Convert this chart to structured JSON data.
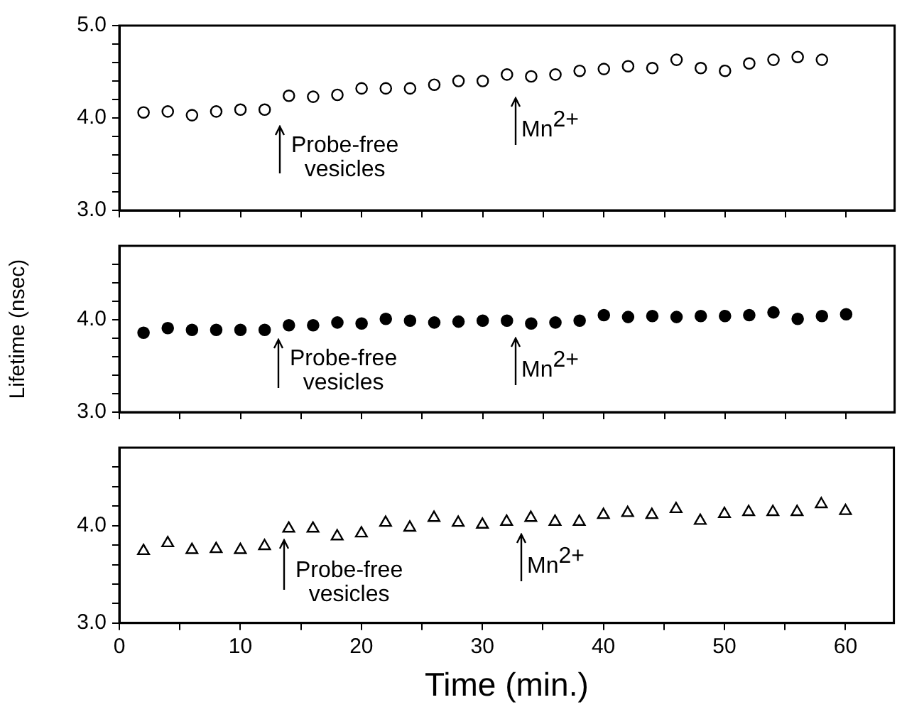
{
  "chart_data": [
    {
      "type": "scatter",
      "xlim": [
        0,
        64
      ],
      "xticks": [
        {
          "value": 0,
          "label": null
        },
        {
          "value": 5,
          "label": null
        },
        {
          "value": 10,
          "label": null
        },
        {
          "value": 15,
          "label": null
        },
        {
          "value": 20,
          "label": null
        },
        {
          "value": 25,
          "label": null
        },
        {
          "value": 30,
          "label": null
        },
        {
          "value": 35,
          "label": null
        },
        {
          "value": 40,
          "label": null
        },
        {
          "value": 45,
          "label": null
        },
        {
          "value": 50,
          "label": null
        },
        {
          "value": 55,
          "label": null
        },
        {
          "value": 60,
          "label": null
        }
      ],
      "ylim": [
        3,
        5
      ],
      "yticks": [
        {
          "value": 3,
          "label": "3.0"
        },
        {
          "value": 3.2,
          "label": null
        },
        {
          "value": 3.4,
          "label": null
        },
        {
          "value": 3.6,
          "label": null
        },
        {
          "value": 3.8,
          "label": null
        },
        {
          "value": 4,
          "label": "4.0"
        },
        {
          "value": 4.2,
          "label": null
        },
        {
          "value": 4.4,
          "label": null
        },
        {
          "value": 4.6,
          "label": null
        },
        {
          "value": 4.8,
          "label": null
        },
        {
          "value": 5,
          "label": "5.0"
        }
      ],
      "tick_labels": "y",
      "marker": "circle",
      "grid": false,
      "legend": false,
      "series": [
        {
          "color": "#000000",
          "x": [
            2,
            4,
            6,
            8,
            10,
            12,
            14,
            16,
            18,
            20,
            22,
            24,
            26,
            28,
            30,
            32,
            34,
            36,
            38,
            40,
            42,
            44,
            46,
            48,
            50,
            52,
            54,
            56,
            58
          ],
          "values": [
            4.06,
            4.07,
            4.03,
            4.07,
            4.09,
            4.09,
            4.24,
            4.23,
            4.25,
            4.32,
            4.32,
            4.32,
            4.36,
            4.4,
            4.4,
            4.47,
            4.45,
            4.47,
            4.51,
            4.53,
            4.56,
            4.54,
            4.63,
            4.54,
            4.51,
            4.59,
            4.63,
            4.66,
            4.63
          ]
        }
      ],
      "annotations": [
        "Probe-free\nvesicles",
        "Mn$^{2+}$"
      ]
    },
    {
      "type": "scatter",
      "xlim": [
        0,
        64
      ],
      "xticks": [
        {
          "value": 0,
          "label": null
        },
        {
          "value": 5,
          "label": null
        },
        {
          "value": 10,
          "label": null
        },
        {
          "value": 15,
          "label": null
        },
        {
          "value": 20,
          "label": null
        },
        {
          "value": 25,
          "label": null
        },
        {
          "value": 30,
          "label": null
        },
        {
          "value": 35,
          "label": null
        },
        {
          "value": 40,
          "label": null
        },
        {
          "value": 45,
          "label": null
        },
        {
          "value": 50,
          "label": null
        },
        {
          "value": 55,
          "label": null
        },
        {
          "value": 60,
          "label": null
        }
      ],
      "ylim": [
        3,
        4.8
      ],
      "yticks": [
        {
          "value": 3,
          "label": "3.0"
        },
        {
          "value": 3.2,
          "label": null
        },
        {
          "value": 3.4,
          "label": null
        },
        {
          "value": 3.6,
          "label": null
        },
        {
          "value": 3.8,
          "label": null
        },
        {
          "value": 4,
          "label": "4.0"
        },
        {
          "value": 4.2,
          "label": null
        },
        {
          "value": 4.4,
          "label": null
        },
        {
          "value": 4.6,
          "label": null
        }
      ],
      "tick_labels": "y",
      "marker": "circle",
      "grid": false,
      "legend": false,
      "ylabel": "Lifetime (nsec)",
      "series": [
        {
          "color": "#000000",
          "x": [
            2,
            4,
            6,
            8,
            10,
            12,
            14,
            16,
            18,
            20,
            22,
            24,
            26,
            28,
            30,
            32,
            34,
            36,
            38,
            40,
            42,
            44,
            46,
            48,
            50,
            52,
            54,
            56,
            58,
            60
          ],
          "values": [
            3.86,
            3.91,
            3.89,
            3.89,
            3.89,
            3.89,
            3.94,
            3.94,
            3.97,
            3.96,
            4.01,
            3.99,
            3.97,
            3.98,
            3.99,
            3.99,
            3.96,
            3.97,
            3.99,
            4.05,
            4.03,
            4.04,
            4.03,
            4.04,
            4.04,
            4.05,
            4.08,
            4.01,
            4.04,
            4.06
          ]
        }
      ],
      "annotations": [
        "Probe-free\nvesicles",
        "Mn$^{2+}$"
      ]
    },
    {
      "type": "scatter",
      "xlim": [
        0,
        64
      ],
      "xticks": [
        0,
        {
          "value": 5,
          "label": null
        },
        10,
        {
          "value": 15,
          "label": null
        },
        20,
        {
          "value": 25,
          "label": null
        },
        30,
        {
          "value": 35,
          "label": null
        },
        40,
        {
          "value": 45,
          "label": null
        },
        50,
        {
          "value": 55,
          "label": null
        },
        60
      ],
      "ylim": [
        3,
        4.8
      ],
      "yticks": [
        {
          "value": 3,
          "label": "3.0"
        },
        {
          "value": 3.2,
          "label": null
        },
        {
          "value": 3.4,
          "label": null
        },
        {
          "value": 3.6,
          "label": null
        },
        {
          "value": 3.8,
          "label": null
        },
        {
          "value": 4,
          "label": "4.0"
        },
        {
          "value": 4.2,
          "label": null
        },
        {
          "value": 4.4,
          "label": null
        },
        {
          "value": 4.6,
          "label": null
        }
      ],
      "marker": "triangle",
      "grid": false,
      "legend": false,
      "xlabel": "Time (min.)",
      "series": [
        {
          "color": "#000000",
          "x": [
            2,
            4,
            6,
            8,
            10,
            12,
            14,
            16,
            18,
            20,
            22,
            24,
            26,
            28,
            30,
            32,
            34,
            36,
            38,
            40,
            42,
            44,
            46,
            48,
            50,
            52,
            54,
            56,
            58,
            60
          ],
          "values": [
            3.74,
            3.82,
            3.75,
            3.76,
            3.75,
            3.79,
            3.97,
            3.97,
            3.89,
            3.92,
            4.03,
            3.98,
            4.08,
            4.03,
            4.01,
            4.04,
            4.08,
            4.04,
            4.04,
            4.11,
            4.13,
            4.11,
            4.17,
            4.05,
            4.12,
            4.14,
            4.14,
            4.14,
            4.22,
            4.15
          ]
        }
      ],
      "annotations": [
        "Probe-free\nvesicles",
        "Mn$^{2+}$"
      ]
    }
  ]
}
